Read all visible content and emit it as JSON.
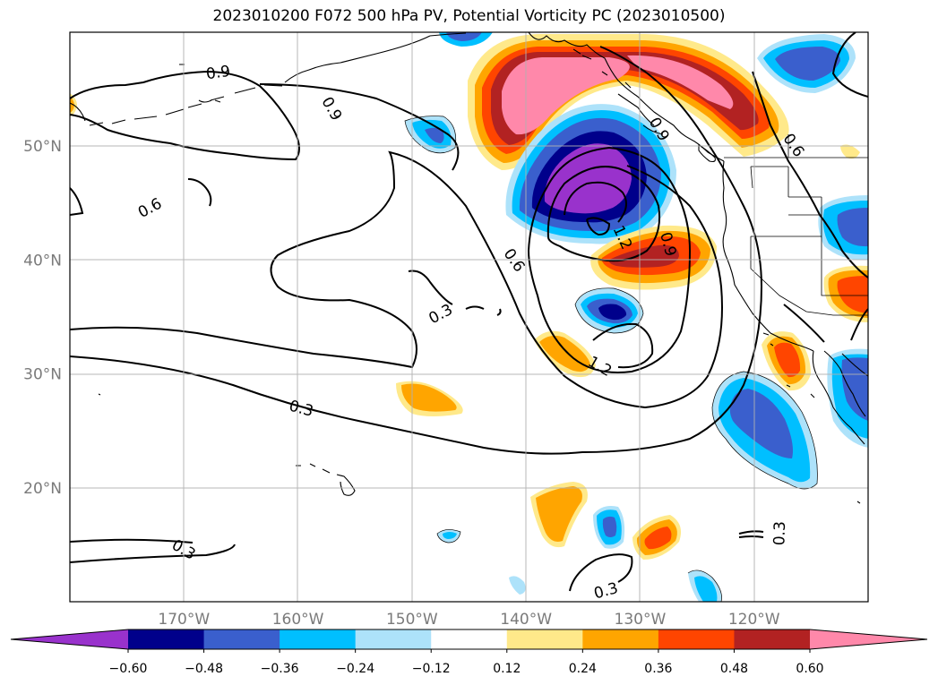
{
  "title": "2023010200 F072 500 hPa PV, Potential Vorticity PC (2023010500)",
  "map": {
    "lon_ticks": [
      {
        "value": -170,
        "label": "170°W"
      },
      {
        "value": -160,
        "label": "160°W"
      },
      {
        "value": -150,
        "label": "150°W"
      },
      {
        "value": -140,
        "label": "140°W"
      },
      {
        "value": -130,
        "label": "130°W"
      },
      {
        "value": -120,
        "label": "120°W"
      }
    ],
    "lat_ticks": [
      {
        "value": 50,
        "label": "50°N"
      },
      {
        "value": 40,
        "label": "40°N"
      },
      {
        "value": 30,
        "label": "30°N"
      },
      {
        "value": 20,
        "label": "20°N"
      }
    ],
    "extent": {
      "lon": [
        -180,
        -110
      ],
      "lat": [
        10,
        60
      ]
    },
    "grid": true,
    "contour_labels": [
      {
        "text": "0.9",
        "lon": -167,
        "lat": 56.5,
        "rot": -8
      },
      {
        "text": "0.9",
        "lon": -157,
        "lat": 53.3,
        "rot": 60
      },
      {
        "text": "0.6",
        "lon": -173,
        "lat": 44.6,
        "rot": -28
      },
      {
        "text": "0.6",
        "lon": -141,
        "lat": 40.0,
        "rot": 55
      },
      {
        "text": "0.3",
        "lon": -147.5,
        "lat": 35.3,
        "rot": -28
      },
      {
        "text": "0.3",
        "lon": -159.7,
        "lat": 27.0,
        "rot": 15
      },
      {
        "text": "0.3",
        "lon": -170,
        "lat": 14.6,
        "rot": 30
      },
      {
        "text": "0.3",
        "lon": -133,
        "lat": 11.0,
        "rot": -15
      },
      {
        "text": "0.3",
        "lon": -117.8,
        "lat": 16.0,
        "rot": -88
      },
      {
        "text": "1.2",
        "lon": -131.5,
        "lat": 42.0,
        "rot": 65
      },
      {
        "text": "1.2",
        "lon": -133.5,
        "lat": 30.7,
        "rot": 30
      },
      {
        "text": "0.9",
        "lon": -127.5,
        "lat": 41.4,
        "rot": 75
      },
      {
        "text": "0.6",
        "lon": -116.5,
        "lat": 50.1,
        "rot": 55
      },
      {
        "text": "0.9",
        "lon": -128.3,
        "lat": 51.5,
        "rot": 60
      }
    ]
  },
  "colorbar": {
    "levels": [
      "−0.60",
      "−0.48",
      "−0.36",
      "−0.24",
      "−0.12",
      "0.12",
      "0.24",
      "0.36",
      "0.48",
      "0.60"
    ],
    "colors": [
      "#9932CC",
      "#00008B",
      "#3A5FCD",
      "#00BFFF",
      "#ADE2FA",
      "#FFFFFF",
      "#FFE98A",
      "#FFA500",
      "#FF4500",
      "#B22222",
      "#FF88AA"
    ]
  },
  "colors": {
    "neg1": "#ADE2FA",
    "neg2": "#00BFFF",
    "neg3": "#3A5FCD",
    "neg4": "#00008B",
    "neg5": "#9932CC",
    "pos1": "#FFE98A",
    "pos2": "#FFA500",
    "pos3": "#FF4500",
    "pos4": "#B22222",
    "pos5": "#FF88AA"
  }
}
